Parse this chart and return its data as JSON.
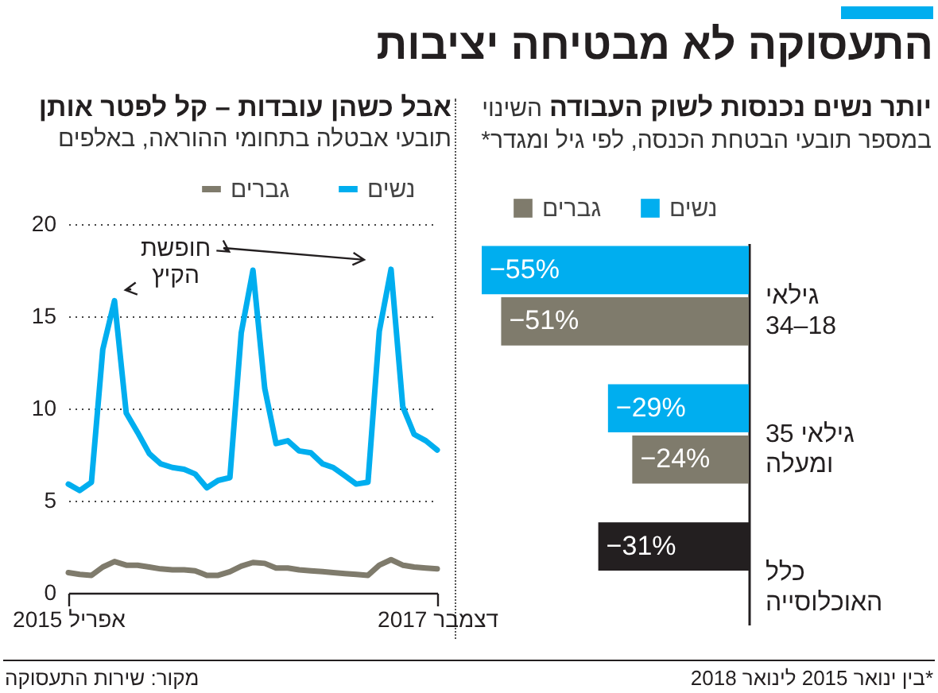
{
  "chart_data": [
    {
      "type": "other",
      "title": "התעסוקה לא מבטיחה יציבות",
      "annotations": [
        "מקור: שירות התעסוקה"
      ]
    },
    {
      "type": "bar",
      "orientation": "horizontal",
      "title": "יותר נשים נכנסות לשוק העבודה",
      "subtitle": "השינוי במספר תובעי הבטחת הכנסה, לפי גיל ומגדר*",
      "categories": [
        "גילאי\n34–18",
        "גילאי 35\nומעלה",
        "כלל\nהאוכלוסייה"
      ],
      "legend": "top right",
      "annotations": [
        "*בין ינואר 2015 לינואר 2018"
      ],
      "series": [
        {
          "name": "נשים",
          "color": "#00aeef",
          "values": [
            -55,
            -29,
            null
          ],
          "value_labels": [
            "−55%",
            "−29%",
            null
          ]
        },
        {
          "name": "גברים",
          "color": "#7f7b6c",
          "values": [
            -51,
            -24,
            null
          ],
          "value_labels": [
            "−51%",
            "−24%",
            null
          ]
        },
        {
          "color": "#231f20",
          "values": [
            null,
            null,
            -31
          ],
          "value_labels": [
            null,
            null,
            "−31%"
          ]
        }
      ]
    },
    {
      "type": "line",
      "title": "אבל כשהן עובדות – קל לפטר אותן",
      "subtitle": "תובעי אבטלה בתחומי ההוראה, באלפים",
      "x": [
        "2015-04",
        "2015-05",
        "2015-06",
        "2015-07",
        "2015-08",
        "2015-09",
        "2015-10",
        "2015-11",
        "2015-12",
        "2016-01",
        "2016-02",
        "2016-03",
        "2016-04",
        "2016-05",
        "2016-06",
        "2016-07",
        "2016-08",
        "2016-09",
        "2016-10",
        "2016-11",
        "2016-12",
        "2017-01",
        "2017-02",
        "2017-03",
        "2017-04",
        "2017-05",
        "2017-06",
        "2017-07",
        "2017-08",
        "2017-09",
        "2017-10",
        "2017-11",
        "2017-12"
      ],
      "xlim": [
        "2015-04",
        "2017-12"
      ],
      "xticks": [
        {
          "value": "2015-04",
          "label": "אפריל 2015"
        },
        {
          "value": "2017-12",
          "label": "דצמבר 2017"
        }
      ],
      "ylim": [
        0,
        20
      ],
      "yticks": [
        0,
        5,
        10,
        15,
        20
      ],
      "grid": "y",
      "legend": "top right",
      "annotations": [
        "חופשת הקיץ"
      ],
      "series": [
        {
          "name": "נשים",
          "color": "#00aeef",
          "values": [
            5.9,
            5.55,
            6.0,
            13.2,
            15.85,
            9.75,
            8.7,
            7.55,
            7.0,
            6.8,
            6.7,
            6.45,
            5.7,
            6.1,
            6.25,
            14.1,
            17.5,
            11.1,
            8.1,
            8.25,
            7.7,
            7.6,
            7.0,
            6.8,
            6.35,
            5.9,
            6.0,
            14.2,
            17.55,
            10.1,
            8.6,
            8.25,
            7.75
          ]
        },
        {
          "name": "גברים",
          "color": "#7f7b6c",
          "values": [
            1.1,
            1.0,
            0.95,
            1.4,
            1.7,
            1.5,
            1.5,
            1.4,
            1.3,
            1.25,
            1.25,
            1.2,
            0.95,
            0.95,
            1.15,
            1.45,
            1.65,
            1.6,
            1.35,
            1.35,
            1.25,
            1.2,
            1.15,
            1.1,
            1.05,
            1.0,
            0.95,
            1.5,
            1.8,
            1.5,
            1.4,
            1.35,
            1.3
          ]
        }
      ]
    }
  ]
}
